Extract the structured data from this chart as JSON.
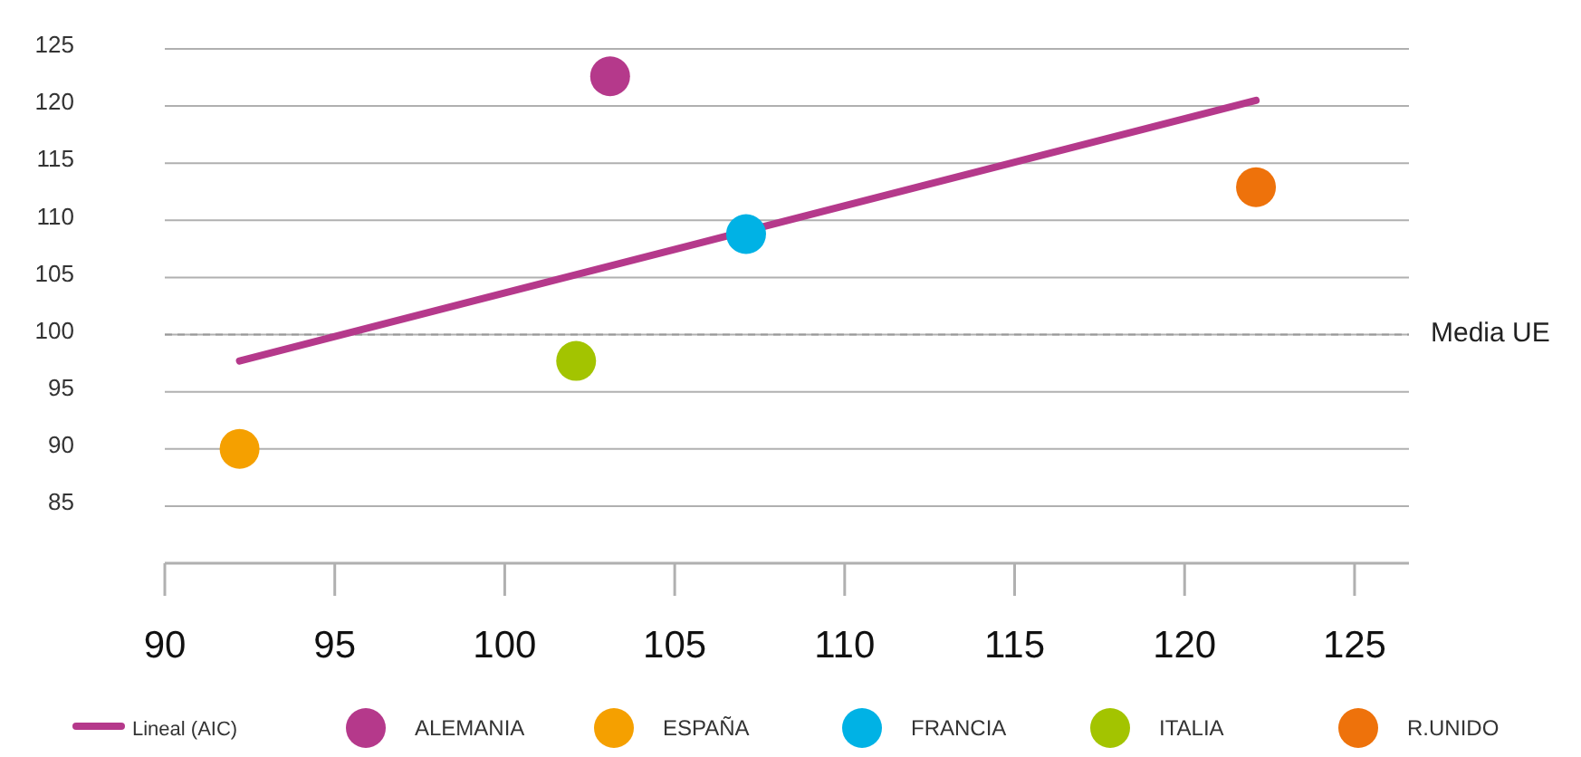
{
  "chart_data": {
    "type": "scatter",
    "xlim": [
      90,
      126.6
    ],
    "xticks": [
      90,
      95,
      100,
      105,
      110,
      115,
      120,
      125
    ],
    "ylim": [
      80,
      125
    ],
    "yticks": [
      85,
      90,
      95,
      100,
      105,
      110,
      115,
      120,
      125
    ],
    "grid": "y",
    "legend": "bottom",
    "marker": "circle",
    "ref_lines": [
      {
        "axis": "y",
        "value": 100,
        "label": "Media UE",
        "color": "#999999",
        "line_style": "dashed"
      }
    ],
    "series": [
      {
        "name": "Lineal (AIC)",
        "type": "line",
        "marker": "none",
        "color": "#b5398b",
        "x": [
          92.2,
          122.1
        ],
        "values": [
          97.7,
          120.5
        ]
      },
      {
        "name": "ALEMANIA",
        "color": "#b5398b",
        "x": [
          103.1
        ],
        "values": [
          122.6
        ]
      },
      {
        "name": "ESPAÑA",
        "color": "#f5a000",
        "x": [
          92.2
        ],
        "values": [
          90
        ]
      },
      {
        "name": "FRANCIA",
        "color": "#00b2e5",
        "x": [
          107.1
        ],
        "values": [
          108.8
        ]
      },
      {
        "name": "ITALIA",
        "color": "#a3c400",
        "x": [
          102.1
        ],
        "values": [
          97.7
        ]
      },
      {
        "name": "R.UNIDO",
        "color": "#ee720b",
        "x": [
          122.1
        ],
        "values": [
          112.9
        ]
      }
    ]
  }
}
